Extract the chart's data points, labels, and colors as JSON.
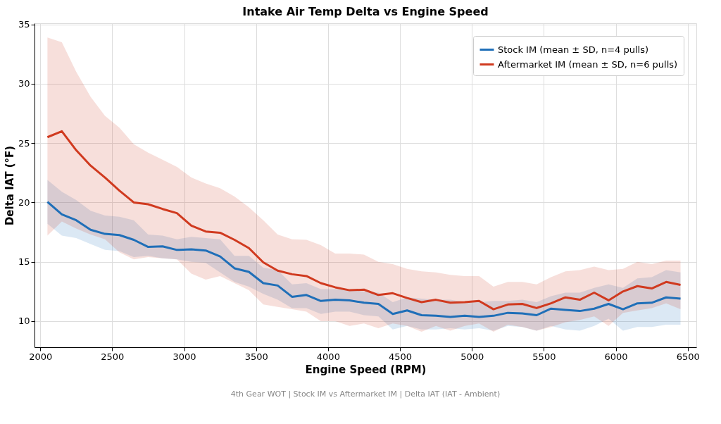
{
  "chart_data": {
    "type": "line",
    "title": "Intake Air Temp Delta vs Engine Speed",
    "xlabel": "Engine Speed (RPM)",
    "ylabel": "Delta IAT (°F)",
    "annotations": [
      "4th Gear WOT  |  Stock IM vs Aftermarket IM  |  Delta IAT (IAT - Ambient)"
    ],
    "x": [
      2050,
      2150,
      2250,
      2350,
      2450,
      2550,
      2650,
      2750,
      2850,
      2950,
      3050,
      3150,
      3250,
      3350,
      3450,
      3550,
      3650,
      3750,
      3850,
      3950,
      4050,
      4150,
      4250,
      4350,
      4450,
      4550,
      4650,
      4750,
      4850,
      4950,
      5050,
      5150,
      5250,
      5350,
      5450,
      5550,
      5650,
      5750,
      5850,
      5950,
      6050,
      6150,
      6250,
      6350,
      6450
    ],
    "series": [
      {
        "name": "Stock IM (mean ± SD, n=4 pulls)",
        "color": "#1f6fb8",
        "values": [
          20.05,
          19.0,
          18.5,
          17.7,
          17.35,
          17.25,
          16.85,
          16.25,
          16.3,
          16.0,
          16.05,
          15.95,
          15.45,
          14.45,
          14.15,
          13.2,
          13.0,
          12.05,
          12.2,
          11.7,
          11.8,
          11.75,
          11.55,
          11.45,
          10.6,
          10.9,
          10.5,
          10.45,
          10.35,
          10.45,
          10.35,
          10.45,
          10.7,
          10.65,
          10.5,
          11.05,
          10.95,
          10.85,
          11.05,
          11.45,
          11.0,
          11.5,
          11.55,
          12.0,
          11.9
        ],
        "upper": [
          21.9,
          20.9,
          20.2,
          19.3,
          18.9,
          18.8,
          18.5,
          17.3,
          17.2,
          16.9,
          17.1,
          17.0,
          16.9,
          15.5,
          15.5,
          14.5,
          14.3,
          13.1,
          13.2,
          12.7,
          12.7,
          12.6,
          12.5,
          12.4,
          11.6,
          12.0,
          11.9,
          11.8,
          11.8,
          11.6,
          11.6,
          11.7,
          11.7,
          11.8,
          11.6,
          12.1,
          12.4,
          12.4,
          12.8,
          13.1,
          12.8,
          13.6,
          13.7,
          14.3,
          14.1
        ],
        "lower": [
          18.2,
          17.2,
          17.0,
          16.5,
          16.0,
          15.9,
          15.4,
          15.5,
          15.3,
          15.2,
          15.0,
          14.9,
          14.1,
          13.3,
          12.9,
          12.3,
          11.8,
          11.1,
          11.1,
          10.6,
          10.8,
          10.8,
          10.5,
          10.4,
          9.3,
          9.6,
          9.3,
          9.3,
          9.4,
          9.3,
          9.4,
          9.2,
          9.6,
          9.5,
          9.2,
          9.6,
          9.3,
          9.2,
          9.6,
          10.2,
          9.2,
          9.5,
          9.5,
          9.7,
          9.7
        ]
      },
      {
        "name": "Aftermarket IM (mean ± SD, n=6 pulls)",
        "color": "#d03a1f",
        "values": [
          25.5,
          26.0,
          24.4,
          23.1,
          22.1,
          21.0,
          20.0,
          19.85,
          19.45,
          19.1,
          18.05,
          17.55,
          17.45,
          16.85,
          16.15,
          14.95,
          14.25,
          13.95,
          13.8,
          13.2,
          12.85,
          12.6,
          12.65,
          12.2,
          12.35,
          11.95,
          11.6,
          11.8,
          11.55,
          11.6,
          11.7,
          11.0,
          11.4,
          11.45,
          11.1,
          11.5,
          12.0,
          11.8,
          12.4,
          11.75,
          12.5,
          12.95,
          12.75,
          13.3,
          13.05
        ],
        "upper": [
          33.9,
          33.5,
          31.0,
          28.9,
          27.3,
          26.3,
          24.9,
          24.2,
          23.6,
          23.0,
          22.1,
          21.6,
          21.2,
          20.5,
          19.6,
          18.5,
          17.3,
          16.9,
          16.85,
          16.4,
          15.7,
          15.7,
          15.6,
          15.0,
          14.8,
          14.4,
          14.2,
          14.1,
          13.9,
          13.8,
          13.8,
          12.9,
          13.3,
          13.3,
          13.1,
          13.7,
          14.2,
          14.3,
          14.6,
          14.3,
          14.4,
          15.0,
          14.8,
          15.1,
          15.1
        ],
        "lower": [
          17.2,
          18.4,
          17.8,
          17.3,
          16.9,
          15.8,
          15.2,
          15.4,
          15.3,
          15.2,
          14.0,
          13.5,
          13.8,
          13.2,
          12.6,
          11.4,
          11.2,
          11.0,
          10.8,
          10.0,
          10.0,
          9.6,
          9.8,
          9.4,
          9.8,
          9.6,
          9.1,
          9.6,
          9.2,
          9.6,
          9.8,
          9.1,
          9.7,
          9.5,
          9.2,
          9.5,
          9.9,
          10.1,
          10.4,
          9.6,
          10.7,
          10.9,
          11.1,
          11.5,
          11.0
        ]
      }
    ],
    "xlim": [
      1960,
      6560
    ],
    "xticks": [
      2000,
      2500,
      3000,
      3500,
      4000,
      4500,
      5000,
      5500,
      6000,
      6500
    ],
    "ylim": [
      7.8,
      35.1
    ],
    "yticks": [
      10,
      15,
      20,
      25,
      30,
      35
    ],
    "grid": true,
    "legend": "top right",
    "line_style": "solid",
    "marker": "none"
  }
}
